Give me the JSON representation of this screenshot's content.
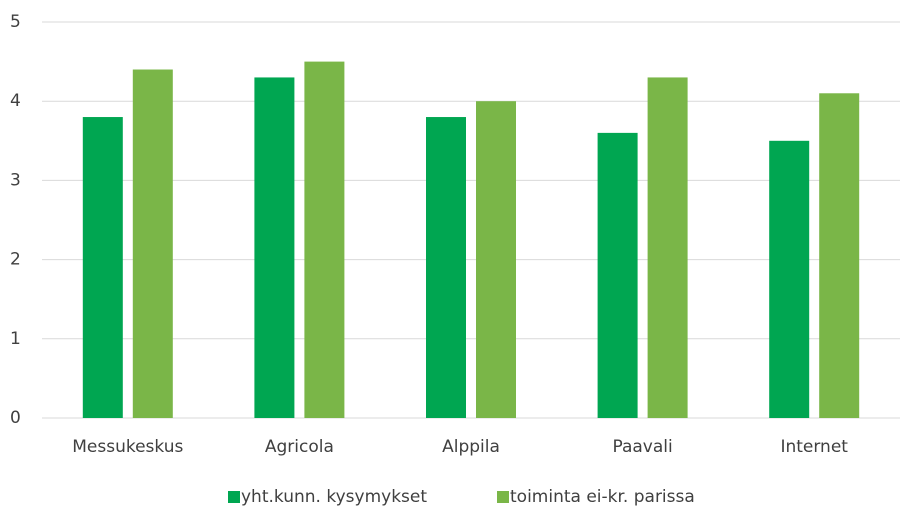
{
  "chart_data": {
    "type": "bar",
    "categories": [
      "Messukeskus",
      "Agricola",
      "Alppila",
      "Paavali",
      "Internet"
    ],
    "series": [
      {
        "name": "yht.kunn. kysymykset",
        "color": "#00a651",
        "values": [
          3.8,
          4.3,
          3.8,
          3.6,
          3.5
        ]
      },
      {
        "name": "toiminta ei-kr. parissa",
        "color": "#7ab648",
        "values": [
          4.4,
          4.5,
          4.0,
          4.3,
          4.1
        ]
      }
    ],
    "ylim": [
      0,
      5
    ],
    "yticks": [
      0,
      1,
      2,
      3,
      4,
      5
    ],
    "grid": true,
    "legend": "bottom"
  }
}
